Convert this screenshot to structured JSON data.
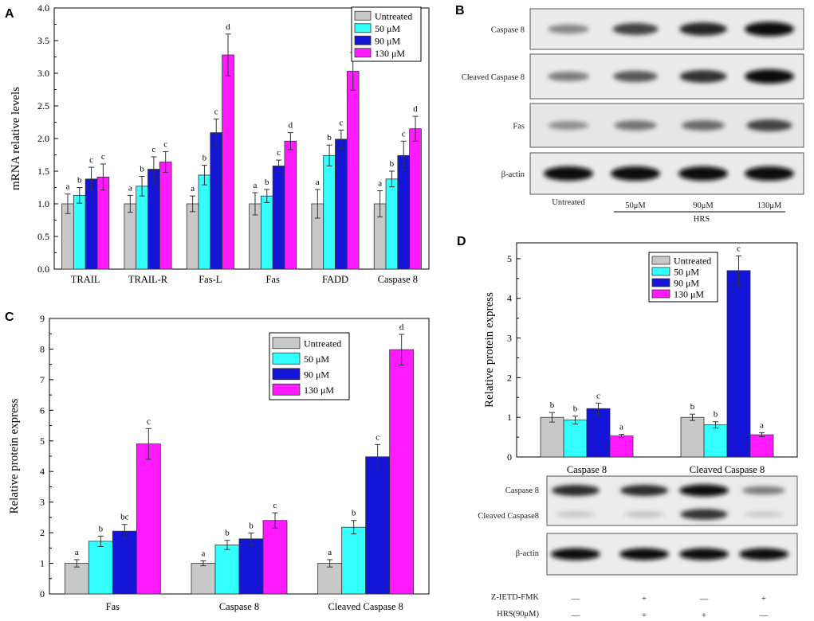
{
  "panels": {
    "A": "A",
    "B": "B",
    "C": "C",
    "D": "D"
  },
  "colors": {
    "Untreated": "#c8c8c8",
    "50 µM": "#33ffff",
    "90 µM": "#1515d8",
    "130 µM": "#ff1aff"
  },
  "chart_data": [
    {
      "panel": "A",
      "type": "bar",
      "title": "",
      "xlabel": "",
      "ylabel": "mRNA relative levels",
      "ylim": [
        0,
        4.0
      ],
      "yticks": [
        "0.0",
        "0.5",
        "1.0",
        "1.5",
        "2.0",
        "2.5",
        "3.0",
        "3.5",
        "4.0"
      ],
      "categories": [
        "TRAIL",
        "TRAIL-R",
        "Fas-L",
        "Fas",
        "FADD",
        "Caspase 8"
      ],
      "series": [
        {
          "name": "Untreated",
          "values": [
            1.0,
            1.0,
            1.0,
            1.0,
            1.0,
            1.0
          ],
          "errors": [
            0.15,
            0.13,
            0.12,
            0.17,
            0.22,
            0.2
          ],
          "labels": [
            "a",
            "a",
            "a",
            "a",
            "a",
            "a"
          ]
        },
        {
          "name": "50 μM",
          "values": [
            1.13,
            1.27,
            1.44,
            1.12,
            1.74,
            1.38
          ],
          "errors": [
            0.12,
            0.15,
            0.15,
            0.1,
            0.16,
            0.12
          ],
          "labels": [
            "b",
            "b",
            "b",
            "b",
            "b",
            "b"
          ]
        },
        {
          "name": "90 μM",
          "values": [
            1.38,
            1.53,
            2.09,
            1.58,
            1.99,
            1.74
          ],
          "errors": [
            0.18,
            0.19,
            0.21,
            0.09,
            0.14,
            0.22
          ],
          "labels": [
            "c",
            "c",
            "c",
            "c",
            "c",
            "c"
          ]
        },
        {
          "name": "130 μM",
          "values": [
            1.41,
            1.64,
            3.28,
            1.96,
            3.03,
            2.15
          ],
          "errors": [
            0.2,
            0.16,
            0.32,
            0.13,
            0.29,
            0.19
          ],
          "labels": [
            "c",
            "c",
            "d",
            "d",
            "d",
            "d"
          ]
        }
      ],
      "legend": [
        "Untreated",
        "50 μM",
        "90 μM",
        "130 μM"
      ],
      "legend_position": "top-right"
    },
    {
      "panel": "C",
      "type": "bar",
      "title": "",
      "xlabel": "",
      "ylabel": "Relative protein express",
      "ylim": [
        0,
        9
      ],
      "yticks": [
        "0",
        "1",
        "2",
        "3",
        "4",
        "5",
        "6",
        "7",
        "8",
        "9"
      ],
      "categories": [
        "Fas",
        "Caspase 8",
        "Cleaved Caspase 8"
      ],
      "series": [
        {
          "name": "Untreated",
          "values": [
            1.0,
            1.0,
            1.0
          ],
          "errors": [
            0.12,
            0.08,
            0.12
          ],
          "labels": [
            "a",
            "a",
            "a"
          ]
        },
        {
          "name": "50 μM",
          "values": [
            1.72,
            1.6,
            2.18
          ],
          "errors": [
            0.17,
            0.15,
            0.22
          ],
          "labels": [
            "b",
            "b",
            "b"
          ]
        },
        {
          "name": "90 μM",
          "values": [
            2.05,
            1.8,
            4.48
          ],
          "errors": [
            0.22,
            0.19,
            0.4
          ],
          "labels": [
            "bc",
            "b",
            "c"
          ]
        },
        {
          "name": "130 μM",
          "values": [
            4.9,
            2.4,
            7.98
          ],
          "errors": [
            0.5,
            0.25,
            0.5
          ],
          "labels": [
            "c",
            "c",
            "d"
          ]
        }
      ],
      "legend": [
        "Untreated",
        "50 μM",
        "90 μM",
        "130 μM"
      ],
      "legend_position": "top-right"
    },
    {
      "panel": "D",
      "type": "bar",
      "title": "",
      "xlabel": "",
      "ylabel": "Relative protein express",
      "ylim": [
        0,
        5.4
      ],
      "yticks": [
        "0",
        "1",
        "2",
        "3",
        "4",
        "5"
      ],
      "categories": [
        "Caspase 8",
        "Cleaved Caspase 8"
      ],
      "series": [
        {
          "name": "Untreated",
          "values": [
            1.0,
            1.0
          ],
          "errors": [
            0.12,
            0.08
          ],
          "labels": [
            "b",
            "b"
          ]
        },
        {
          "name": "50 μM",
          "values": [
            0.93,
            0.81
          ],
          "errors": [
            0.1,
            0.08
          ],
          "labels": [
            "b",
            "b"
          ]
        },
        {
          "name": "90 μM",
          "values": [
            1.22,
            4.7
          ],
          "errors": [
            0.14,
            0.37
          ],
          "labels": [
            "c",
            "c"
          ]
        },
        {
          "name": "130 μM",
          "values": [
            0.53,
            0.56
          ],
          "errors": [
            0.04,
            0.05
          ],
          "labels": [
            "a",
            "a"
          ]
        }
      ],
      "legend": [
        "Untreated",
        "50 μM",
        "90 μM",
        "130 μM"
      ],
      "legend_position": "top-center"
    }
  ],
  "blot_B": {
    "rows": [
      "Caspase 8",
      "Cleaved Caspase 8",
      "Fas",
      "β-actin"
    ],
    "lanes": [
      "Untreated",
      "50μM",
      "90μM",
      "130μM"
    ],
    "group_label": "HRS",
    "intensity": [
      [
        0.35,
        0.7,
        0.85,
        1.0
      ],
      [
        0.4,
        0.6,
        0.8,
        1.0
      ],
      [
        0.3,
        0.45,
        0.5,
        0.7
      ],
      [
        1.0,
        1.0,
        1.0,
        1.0
      ]
    ]
  },
  "blot_D": {
    "rows": [
      "Caspase 8",
      "Cleaved Caspase8",
      "β-actin"
    ],
    "treatments": [
      {
        "label": "Z-IETD-FMK",
        "signs": [
          "—",
          "+",
          "—",
          "+"
        ]
      },
      {
        "label": "HRS(90μM)",
        "signs": [
          "—",
          "+",
          "+",
          "—"
        ]
      }
    ],
    "intensity": [
      [
        0.85,
        0.85,
        1.0,
        0.45
      ],
      [
        0.08,
        0.1,
        0.8,
        0.06
      ],
      [
        1.0,
        1.0,
        1.0,
        1.0
      ]
    ]
  }
}
